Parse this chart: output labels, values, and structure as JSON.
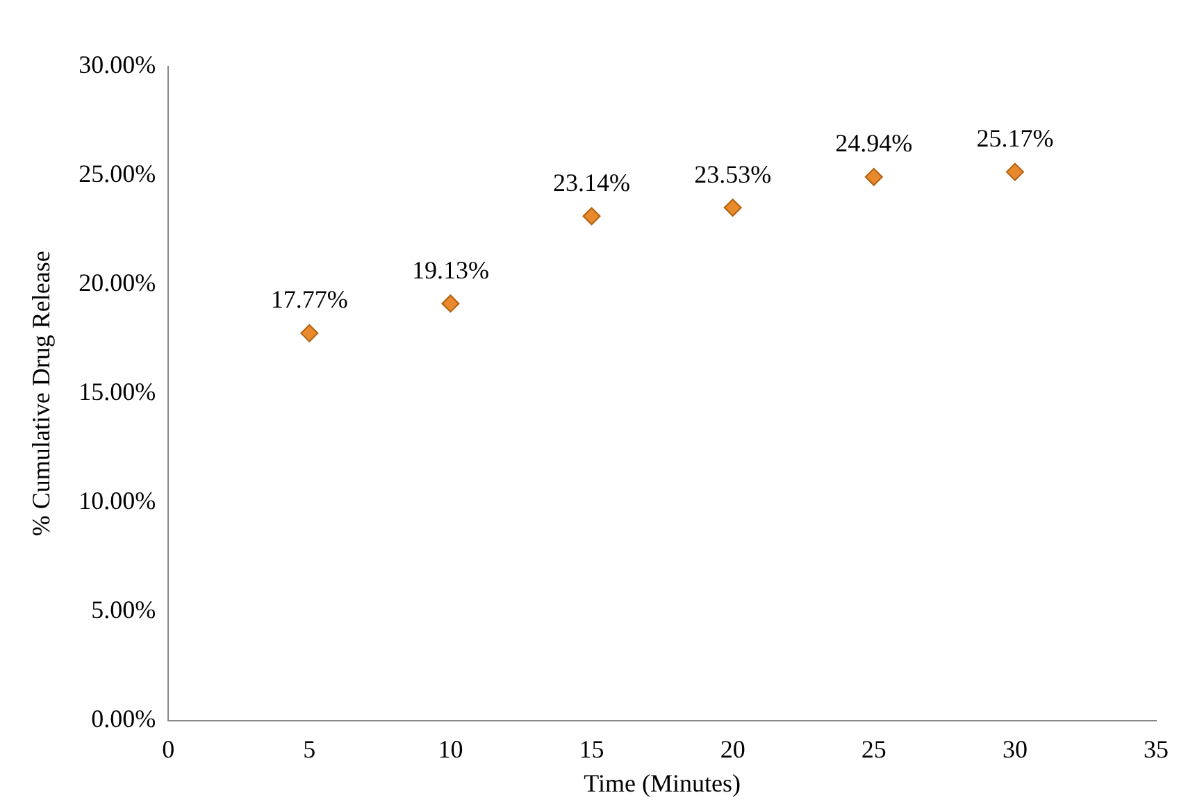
{
  "chart_data": {
    "type": "scatter",
    "xlabel": "Time (Minutes)",
    "ylabel": "% Cumulative Drug Release",
    "x": [
      5,
      10,
      15,
      20,
      25,
      30
    ],
    "series": [
      {
        "color": "#e8892b",
        "values": [
          17.77,
          19.13,
          23.14,
          23.53,
          24.94,
          25.17
        ],
        "value_labels": [
          "17.77%",
          "19.13%",
          "23.14%",
          "23.53%",
          "24.94%",
          "25.17%"
        ]
      }
    ],
    "xlim": [
      0,
      35
    ],
    "xticks": [
      0,
      5,
      10,
      15,
      20,
      25,
      30,
      35
    ],
    "ylim": [
      0,
      30
    ],
    "yticks": [
      {
        "value": 0,
        "label": "0.00%"
      },
      {
        "value": 5,
        "label": "5.00%"
      },
      {
        "value": 10,
        "label": "10.00%"
      },
      {
        "value": 15,
        "label": "15.00%"
      },
      {
        "value": 20,
        "label": "20.00%"
      },
      {
        "value": 25,
        "label": "25.00%"
      },
      {
        "value": 30,
        "label": "30.00%"
      }
    ],
    "grid": false,
    "legend": false,
    "marker": "diamond"
  }
}
